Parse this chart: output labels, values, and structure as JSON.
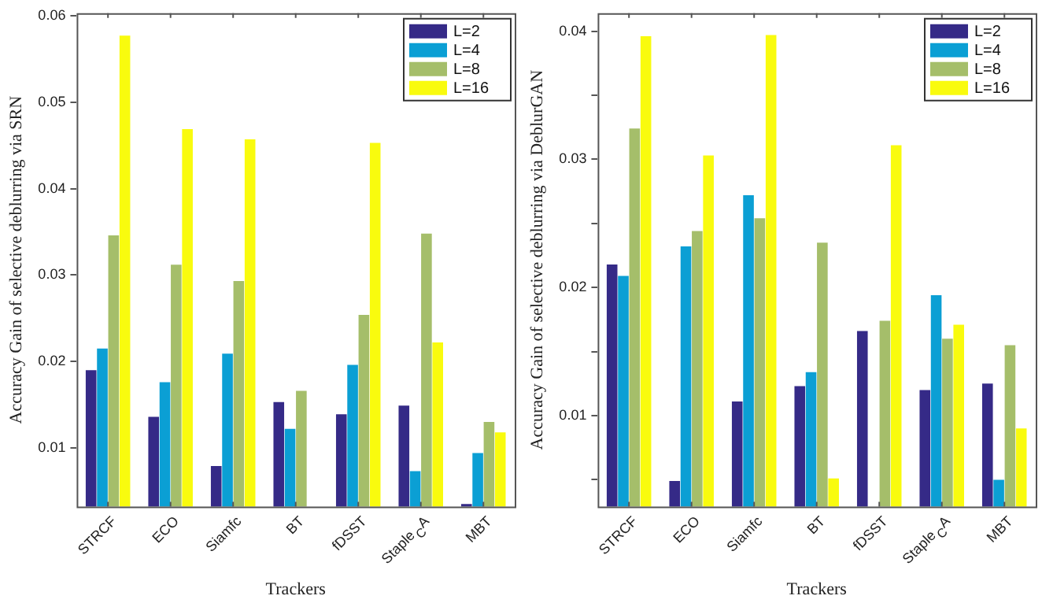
{
  "chart_data": [
    {
      "type": "bar",
      "xlabel": "Trackers",
      "ylabel": "Accuracy Gain of selective deblurring via SRN",
      "categories": [
        "STRCF",
        "ECO",
        "Siamfc",
        "BT",
        "fDSST",
        "Staple$_{C}$A",
        "MBT"
      ],
      "series": [
        {
          "name": "L=2",
          "color": "#352a87",
          "values": [
            0.019,
            0.0136,
            0.0079,
            0.0153,
            0.0139,
            0.0149,
            0.0035
          ]
        },
        {
          "name": "L=4",
          "color": "#0b9fd4",
          "values": [
            0.0215,
            0.0176,
            0.0209,
            0.0122,
            0.0196,
            0.0073,
            0.0094
          ]
        },
        {
          "name": "L=8",
          "color": "#a5be6a",
          "values": [
            0.0346,
            0.0312,
            0.0293,
            0.0166,
            0.0254,
            0.0348,
            0.013
          ]
        },
        {
          "name": "L=16",
          "color": "#f9fb0e",
          "values": [
            0.0577,
            0.0469,
            0.0457,
            null,
            0.0453,
            0.0222,
            0.0118
          ]
        }
      ],
      "ylim": [
        0.0032,
        0.0603
      ],
      "yticks": [
        0.01,
        0.02,
        0.03,
        0.04,
        0.05,
        0.06
      ],
      "legend": "top right",
      "grid": false
    },
    {
      "type": "bar",
      "xlabel": "Trackers",
      "ylabel": "Accuracy Gain of selective deblurring via DeblurGAN",
      "categories": [
        "STRCF",
        "ECO",
        "Siamfc",
        "BT",
        "fDSST",
        "Staple$_{C}$A",
        "MBT"
      ],
      "series": [
        {
          "name": "L=2",
          "color": "#352a87",
          "values": [
            0.0218,
            0.0049,
            0.0111,
            0.0123,
            0.0166,
            0.012,
            0.0125
          ]
        },
        {
          "name": "L=4",
          "color": "#0b9fd4",
          "values": [
            0.0209,
            0.0232,
            0.0272,
            0.0134,
            null,
            0.0194,
            0.005
          ]
        },
        {
          "name": "L=8",
          "color": "#a5be6a",
          "values": [
            0.0324,
            0.0244,
            0.0254,
            0.0235,
            0.0174,
            0.016,
            0.0155
          ]
        },
        {
          "name": "L=16",
          "color": "#f9fb0e",
          "values": [
            0.0396,
            0.0303,
            0.0397,
            0.0051,
            0.0311,
            0.0171,
            0.009
          ]
        }
      ],
      "ylim": [
        0.0029,
        0.0414
      ],
      "yticks": [
        {
          "value": 0.005,
          "label": null
        },
        0.01,
        {
          "value": 0.015,
          "label": null
        },
        0.02,
        {
          "value": 0.025,
          "label": null
        },
        0.03,
        {
          "value": 0.035,
          "label": null
        },
        0.04
      ],
      "legend": "top right",
      "grid": false
    }
  ]
}
